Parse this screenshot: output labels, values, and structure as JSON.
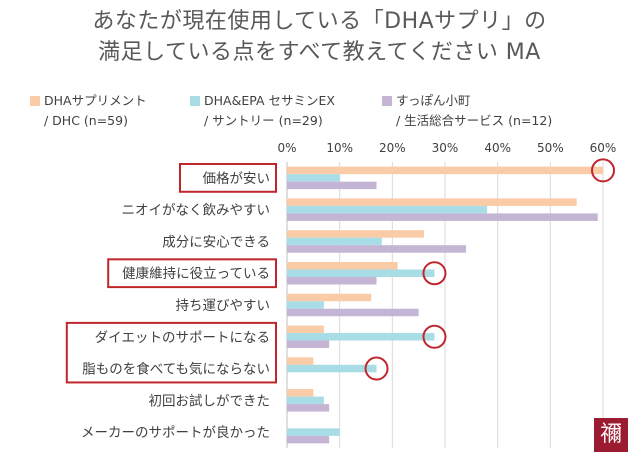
{
  "title": {
    "line1": "あなたが現在使用している「DHAサプリ」の",
    "line2": "満足している点をすべて教えてください MA"
  },
  "colors": {
    "dhc": "#f9cba6",
    "suntory": "#a8dde6",
    "other": "#c3b5d3",
    "highlight": "#c0272d",
    "grid": "#d9d9d9"
  },
  "legend": [
    {
      "line1": "DHAサプリメント",
      "line2": "/ DHC (n=59)",
      "color": "#f9cba6"
    },
    {
      "line1": "DHA&EPA セサミンEX",
      "line2": "/ サントリー (n=29)",
      "color": "#a8dde6"
    },
    {
      "line1": "すっぽん小町",
      "line2": "/ 生活総合サービス (n=12)",
      "color": "#c3b5d3"
    }
  ],
  "chart_data": {
    "type": "bar",
    "orientation": "horizontal",
    "xlim": [
      0,
      60
    ],
    "x_ticks": [
      "0%",
      "10%",
      "20%",
      "30%",
      "40%",
      "50%",
      "60%"
    ],
    "categories": [
      "価格が安い",
      "ニオイがなく飲みやすい",
      "成分に安心できる",
      "健康維持に役立っている",
      "持ち運びやすい",
      "ダイエットのサポートになる",
      "脂ものを食べても気にならない",
      "初回お試しができた",
      "メーカーのサポートが良かった"
    ],
    "series": [
      {
        "name": "DHAサプリメント / DHC (n=59)",
        "values": [
          60,
          55,
          26,
          21,
          16,
          7,
          5,
          5,
          0
        ]
      },
      {
        "name": "DHA&EPA セサミンEX / サントリー (n=29)",
        "values": [
          10,
          38,
          18,
          28,
          7,
          28,
          17,
          7,
          10
        ]
      },
      {
        "name": "すっぽん小町 / 生活総合サービス (n=12)",
        "values": [
          17,
          59,
          34,
          17,
          25,
          8,
          0,
          8,
          8
        ]
      }
    ],
    "highlighted_categories": [
      0,
      3,
      5,
      6
    ],
    "circled_bars": [
      {
        "category": 0,
        "series": 0
      },
      {
        "category": 3,
        "series": 1
      },
      {
        "category": 5,
        "series": 1
      },
      {
        "category": 6,
        "series": 1
      }
    ]
  },
  "logo": {
    "glyph": "禰"
  }
}
